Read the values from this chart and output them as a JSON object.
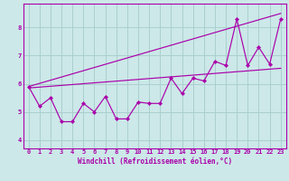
{
  "xlabel": "Windchill (Refroidissement éolien,°C)",
  "ylabel": "",
  "background_color": "#cce8e8",
  "grid_color": "#aacfcf",
  "line_color": "#aa00aa",
  "spine_color": "#aa00aa",
  "xlim": [
    -0.5,
    23.5
  ],
  "ylim": [
    3.7,
    8.85
  ],
  "xticks": [
    0,
    1,
    2,
    3,
    4,
    5,
    6,
    7,
    8,
    9,
    10,
    11,
    12,
    13,
    14,
    15,
    16,
    17,
    18,
    19,
    20,
    21,
    22,
    23
  ],
  "yticks": [
    4,
    5,
    6,
    7,
    8
  ],
  "data_x": [
    0,
    1,
    2,
    3,
    4,
    5,
    6,
    7,
    8,
    9,
    10,
    11,
    12,
    13,
    14,
    15,
    16,
    17,
    18,
    19,
    20,
    21,
    22,
    23
  ],
  "data_y": [
    5.9,
    5.2,
    5.5,
    4.65,
    4.65,
    5.3,
    5.0,
    5.55,
    4.75,
    4.75,
    5.35,
    5.3,
    5.3,
    6.2,
    5.65,
    6.2,
    6.1,
    6.8,
    6.65,
    8.3,
    6.65,
    7.3,
    6.7,
    8.3
  ],
  "upper_line_x": [
    0,
    23
  ],
  "upper_line_y": [
    5.9,
    8.5
  ],
  "lower_line_x": [
    0,
    23
  ],
  "lower_line_y": [
    5.85,
    6.55
  ],
  "tick_fontsize": 5.0,
  "xlabel_fontsize": 5.5,
  "linewidth": 0.85,
  "markersize": 2.2
}
